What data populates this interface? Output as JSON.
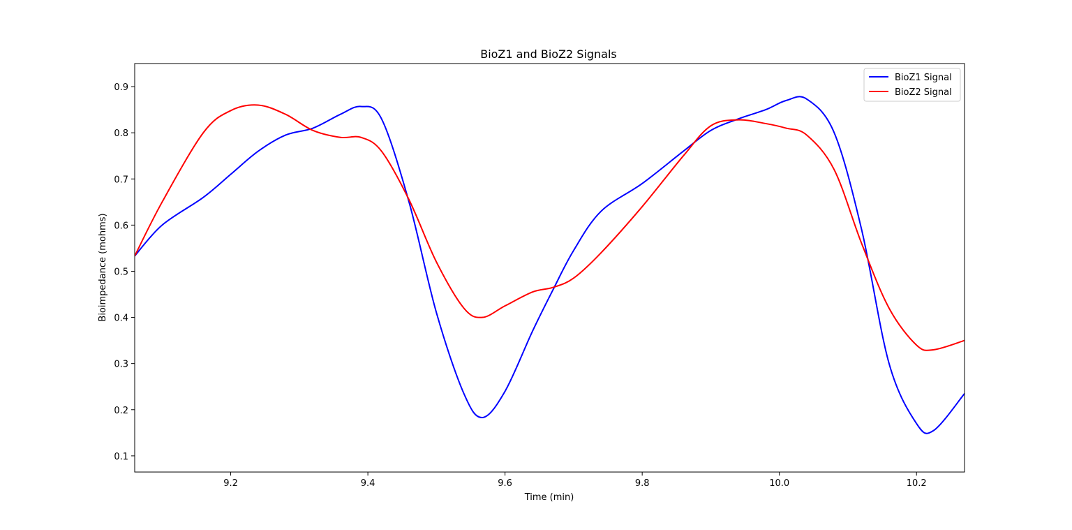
{
  "chart_data": {
    "type": "line",
    "title": "BioZ1 and BioZ2 Signals",
    "xlabel": "Time (min)",
    "ylabel": "Bioimpedance (mohms)",
    "xlim": [
      9.06,
      10.27
    ],
    "ylim": [
      0.065,
      0.95
    ],
    "xticks": [
      "9.2",
      "9.4",
      "9.6",
      "9.8",
      "10.0",
      "10.2"
    ],
    "yticks": [
      "0.1",
      "0.2",
      "0.3",
      "0.4",
      "0.5",
      "0.6",
      "0.7",
      "0.8",
      "0.9"
    ],
    "grid": false,
    "legend_position": "top-right",
    "x": [
      9.06,
      9.1,
      9.16,
      9.2,
      9.24,
      9.28,
      9.32,
      9.36,
      9.39,
      9.42,
      9.46,
      9.5,
      9.54,
      9.567,
      9.6,
      9.64,
      9.67,
      9.7,
      9.74,
      9.8,
      9.86,
      9.9,
      9.94,
      9.98,
      10.01,
      10.04,
      10.08,
      10.12,
      10.16,
      10.2,
      10.225,
      10.27
    ],
    "series": [
      {
        "name": "BioZ1 Signal",
        "color": "#0000ff",
        "values": [
          0.533,
          0.6,
          0.66,
          0.71,
          0.76,
          0.795,
          0.81,
          0.84,
          0.857,
          0.83,
          0.65,
          0.41,
          0.235,
          0.183,
          0.24,
          0.37,
          0.46,
          0.545,
          0.63,
          0.69,
          0.76,
          0.805,
          0.83,
          0.85,
          0.87,
          0.873,
          0.8,
          0.59,
          0.3,
          0.17,
          0.155,
          0.235
        ]
      },
      {
        "name": "BioZ2 Signal",
        "color": "#ff0000",
        "values": [
          0.533,
          0.65,
          0.8,
          0.848,
          0.86,
          0.84,
          0.805,
          0.79,
          0.79,
          0.76,
          0.655,
          0.52,
          0.42,
          0.4,
          0.425,
          0.455,
          0.465,
          0.485,
          0.54,
          0.64,
          0.75,
          0.815,
          0.828,
          0.82,
          0.81,
          0.795,
          0.72,
          0.56,
          0.42,
          0.34,
          0.33,
          0.35
        ]
      }
    ]
  }
}
